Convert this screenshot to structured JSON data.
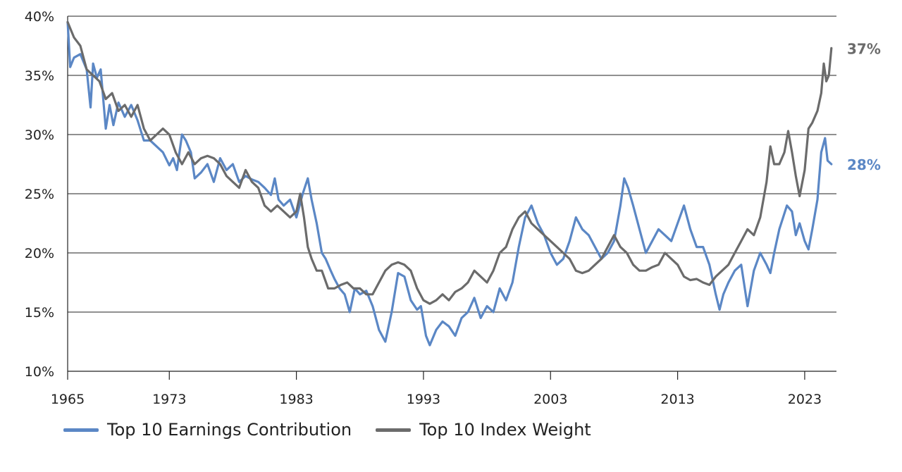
{
  "chart_data": {
    "type": "line",
    "title": "",
    "xlabel": "",
    "ylabel": "",
    "xlim": [
      1965,
      2025.5
    ],
    "ylim": [
      10,
      40
    ],
    "x_ticks": [
      1965,
      1973,
      1983,
      1993,
      2003,
      2013,
      2023
    ],
    "x_tick_labels": [
      "1965",
      "1973",
      "1983",
      "1993",
      "2003",
      "2013",
      "2023"
    ],
    "y_ticks": [
      10,
      15,
      20,
      25,
      30,
      35,
      40
    ],
    "y_tick_labels": [
      "10%",
      "15%",
      "20%",
      "25%",
      "30%",
      "35%",
      "40%"
    ],
    "grid": "horizontal",
    "legend_position": "bottom-left",
    "series": [
      {
        "name": "Top 10 Earnings Contribution",
        "color": "#5b87c5",
        "end_label": "28%",
        "points": [
          [
            1965.0,
            39.5
          ],
          [
            1965.2,
            35.7
          ],
          [
            1965.5,
            36.5
          ],
          [
            1966.0,
            36.8
          ],
          [
            1966.5,
            35.5
          ],
          [
            1966.8,
            32.3
          ],
          [
            1967.0,
            36.0
          ],
          [
            1967.3,
            34.8
          ],
          [
            1967.6,
            35.5
          ],
          [
            1968.0,
            30.5
          ],
          [
            1968.3,
            32.5
          ],
          [
            1968.6,
            30.8
          ],
          [
            1969.0,
            32.7
          ],
          [
            1969.5,
            31.5
          ],
          [
            1970.0,
            32.5
          ],
          [
            1970.5,
            31.2
          ],
          [
            1971.0,
            29.5
          ],
          [
            1971.5,
            29.5
          ],
          [
            1972.0,
            29.0
          ],
          [
            1972.5,
            28.5
          ],
          [
            1973.0,
            27.4
          ],
          [
            1973.3,
            28.0
          ],
          [
            1973.6,
            27.0
          ],
          [
            1974.0,
            30.0
          ],
          [
            1974.3,
            29.5
          ],
          [
            1974.7,
            28.5
          ],
          [
            1975.0,
            26.3
          ],
          [
            1975.5,
            26.8
          ],
          [
            1976.0,
            27.5
          ],
          [
            1976.5,
            26.0
          ],
          [
            1977.0,
            28.0
          ],
          [
            1977.5,
            27.0
          ],
          [
            1978.0,
            27.5
          ],
          [
            1978.5,
            26.0
          ],
          [
            1979.0,
            26.5
          ],
          [
            1979.5,
            26.2
          ],
          [
            1980.0,
            26.0
          ],
          [
            1980.5,
            25.5
          ],
          [
            1981.0,
            24.9
          ],
          [
            1981.3,
            26.3
          ],
          [
            1981.6,
            24.5
          ],
          [
            1982.0,
            24.0
          ],
          [
            1982.5,
            24.5
          ],
          [
            1983.0,
            23.0
          ],
          [
            1983.5,
            25.0
          ],
          [
            1983.9,
            26.3
          ],
          [
            1984.2,
            24.5
          ],
          [
            1984.6,
            22.5
          ],
          [
            1985.0,
            20.0
          ],
          [
            1985.3,
            19.5
          ],
          [
            1985.7,
            18.5
          ],
          [
            1986.0,
            17.8
          ],
          [
            1986.4,
            17.0
          ],
          [
            1986.8,
            16.5
          ],
          [
            1987.2,
            15.0
          ],
          [
            1987.6,
            17.0
          ],
          [
            1988.0,
            16.5
          ],
          [
            1988.5,
            16.8
          ],
          [
            1989.0,
            15.5
          ],
          [
            1989.5,
            13.5
          ],
          [
            1990.0,
            12.5
          ],
          [
            1990.5,
            15.0
          ],
          [
            1991.0,
            18.3
          ],
          [
            1991.5,
            18.0
          ],
          [
            1992.0,
            16.0
          ],
          [
            1992.5,
            15.2
          ],
          [
            1992.8,
            15.5
          ],
          [
            1993.2,
            13.0
          ],
          [
            1993.5,
            12.2
          ],
          [
            1994.0,
            13.5
          ],
          [
            1994.5,
            14.2
          ],
          [
            1995.0,
            13.8
          ],
          [
            1995.5,
            13.0
          ],
          [
            1996.0,
            14.5
          ],
          [
            1996.5,
            15.0
          ],
          [
            1997.0,
            16.2
          ],
          [
            1997.5,
            14.5
          ],
          [
            1998.0,
            15.5
          ],
          [
            1998.5,
            15.0
          ],
          [
            1999.0,
            17.0
          ],
          [
            1999.5,
            16.0
          ],
          [
            2000.0,
            17.5
          ],
          [
            2000.5,
            20.5
          ],
          [
            2001.0,
            23.0
          ],
          [
            2001.5,
            24.0
          ],
          [
            2002.0,
            22.5
          ],
          [
            2002.5,
            21.5
          ],
          [
            2003.0,
            20.0
          ],
          [
            2003.5,
            19.0
          ],
          [
            2004.0,
            19.5
          ],
          [
            2004.5,
            21.0
          ],
          [
            2005.0,
            23.0
          ],
          [
            2005.5,
            22.0
          ],
          [
            2006.0,
            21.5
          ],
          [
            2006.5,
            20.5
          ],
          [
            2007.0,
            19.5
          ],
          [
            2007.5,
            20.0
          ],
          [
            2008.0,
            21.0
          ],
          [
            2008.5,
            24.0
          ],
          [
            2008.8,
            26.3
          ],
          [
            2009.1,
            25.5
          ],
          [
            2009.5,
            24.0
          ],
          [
            2010.0,
            22.0
          ],
          [
            2010.5,
            20.0
          ],
          [
            2011.0,
            21.0
          ],
          [
            2011.5,
            22.0
          ],
          [
            2012.0,
            21.5
          ],
          [
            2012.5,
            21.0
          ],
          [
            2013.0,
            22.5
          ],
          [
            2013.5,
            24.0
          ],
          [
            2014.0,
            22.0
          ],
          [
            2014.5,
            20.5
          ],
          [
            2015.0,
            20.5
          ],
          [
            2015.5,
            19.0
          ],
          [
            2015.8,
            17.5
          ],
          [
            2016.0,
            16.5
          ],
          [
            2016.3,
            15.2
          ],
          [
            2016.6,
            16.5
          ],
          [
            2017.0,
            17.5
          ],
          [
            2017.5,
            18.5
          ],
          [
            2018.0,
            19.0
          ],
          [
            2018.5,
            15.5
          ],
          [
            2019.0,
            18.5
          ],
          [
            2019.5,
            20.0
          ],
          [
            2020.0,
            19.0
          ],
          [
            2020.3,
            18.3
          ],
          [
            2020.6,
            20.0
          ],
          [
            2021.0,
            22.0
          ],
          [
            2021.3,
            23.0
          ],
          [
            2021.6,
            24.0
          ],
          [
            2022.0,
            23.5
          ],
          [
            2022.3,
            21.5
          ],
          [
            2022.6,
            22.5
          ],
          [
            2023.0,
            21.0
          ],
          [
            2023.3,
            20.3
          ],
          [
            2023.6,
            22.0
          ],
          [
            2024.0,
            24.5
          ],
          [
            2024.3,
            28.5
          ],
          [
            2024.6,
            29.7
          ],
          [
            2024.8,
            27.8
          ],
          [
            2025.1,
            27.5
          ]
        ]
      },
      {
        "name": "Top 10 Index Weight",
        "color": "#6b6b6b",
        "end_label": "37%",
        "points": [
          [
            1965.0,
            39.5
          ],
          [
            1965.5,
            38.2
          ],
          [
            1966.0,
            37.5
          ],
          [
            1966.5,
            35.5
          ],
          [
            1967.0,
            35.0
          ],
          [
            1967.5,
            34.5
          ],
          [
            1968.0,
            33.0
          ],
          [
            1968.5,
            33.5
          ],
          [
            1969.0,
            32.0
          ],
          [
            1969.5,
            32.5
          ],
          [
            1970.0,
            31.5
          ],
          [
            1970.5,
            32.5
          ],
          [
            1971.0,
            30.5
          ],
          [
            1971.5,
            29.5
          ],
          [
            1972.0,
            30.0
          ],
          [
            1972.5,
            30.5
          ],
          [
            1973.0,
            30.0
          ],
          [
            1973.5,
            28.5
          ],
          [
            1974.0,
            27.5
          ],
          [
            1974.5,
            28.5
          ],
          [
            1975.0,
            27.5
          ],
          [
            1975.5,
            28.0
          ],
          [
            1976.0,
            28.2
          ],
          [
            1976.5,
            28.0
          ],
          [
            1977.0,
            27.5
          ],
          [
            1977.5,
            26.5
          ],
          [
            1978.0,
            26.0
          ],
          [
            1978.5,
            25.5
          ],
          [
            1979.0,
            27.0
          ],
          [
            1979.5,
            26.0
          ],
          [
            1980.0,
            25.5
          ],
          [
            1980.5,
            24.0
          ],
          [
            1981.0,
            23.5
          ],
          [
            1981.5,
            24.0
          ],
          [
            1982.0,
            23.5
          ],
          [
            1982.5,
            23.0
          ],
          [
            1983.0,
            23.5
          ],
          [
            1983.3,
            25.0
          ],
          [
            1983.6,
            23.0
          ],
          [
            1983.9,
            20.5
          ],
          [
            1984.2,
            19.5
          ],
          [
            1984.6,
            18.5
          ],
          [
            1985.0,
            18.5
          ],
          [
            1985.5,
            17.0
          ],
          [
            1986.0,
            17.0
          ],
          [
            1986.5,
            17.3
          ],
          [
            1987.0,
            17.5
          ],
          [
            1987.5,
            17.0
          ],
          [
            1988.0,
            17.0
          ],
          [
            1988.5,
            16.5
          ],
          [
            1989.0,
            16.5
          ],
          [
            1989.5,
            17.5
          ],
          [
            1990.0,
            18.5
          ],
          [
            1990.5,
            19.0
          ],
          [
            1991.0,
            19.2
          ],
          [
            1991.5,
            19.0
          ],
          [
            1992.0,
            18.5
          ],
          [
            1992.5,
            17.0
          ],
          [
            1993.0,
            16.0
          ],
          [
            1993.5,
            15.7
          ],
          [
            1994.0,
            16.0
          ],
          [
            1994.5,
            16.5
          ],
          [
            1995.0,
            16.0
          ],
          [
            1995.5,
            16.7
          ],
          [
            1996.0,
            17.0
          ],
          [
            1996.5,
            17.5
          ],
          [
            1997.0,
            18.5
          ],
          [
            1997.5,
            18.0
          ],
          [
            1998.0,
            17.5
          ],
          [
            1998.5,
            18.5
          ],
          [
            1999.0,
            20.0
          ],
          [
            1999.5,
            20.5
          ],
          [
            2000.0,
            22.0
          ],
          [
            2000.5,
            23.0
          ],
          [
            2001.0,
            23.5
          ],
          [
            2001.5,
            22.5
          ],
          [
            2002.0,
            22.0
          ],
          [
            2002.5,
            21.5
          ],
          [
            2003.0,
            21.0
          ],
          [
            2003.5,
            20.5
          ],
          [
            2004.0,
            20.0
          ],
          [
            2004.5,
            19.5
          ],
          [
            2005.0,
            18.5
          ],
          [
            2005.5,
            18.3
          ],
          [
            2006.0,
            18.5
          ],
          [
            2006.5,
            19.0
          ],
          [
            2007.0,
            19.5
          ],
          [
            2007.5,
            20.5
          ],
          [
            2008.0,
            21.5
          ],
          [
            2008.5,
            20.5
          ],
          [
            2009.0,
            20.0
          ],
          [
            2009.5,
            19.0
          ],
          [
            2010.0,
            18.5
          ],
          [
            2010.5,
            18.5
          ],
          [
            2011.0,
            18.8
          ],
          [
            2011.5,
            19.0
          ],
          [
            2012.0,
            20.0
          ],
          [
            2012.5,
            19.5
          ],
          [
            2013.0,
            19.0
          ],
          [
            2013.5,
            18.0
          ],
          [
            2014.0,
            17.7
          ],
          [
            2014.5,
            17.8
          ],
          [
            2015.0,
            17.5
          ],
          [
            2015.5,
            17.3
          ],
          [
            2016.0,
            18.0
          ],
          [
            2016.5,
            18.5
          ],
          [
            2017.0,
            19.0
          ],
          [
            2017.5,
            20.0
          ],
          [
            2018.0,
            21.0
          ],
          [
            2018.5,
            22.0
          ],
          [
            2019.0,
            21.5
          ],
          [
            2019.5,
            23.0
          ],
          [
            2020.0,
            26.0
          ],
          [
            2020.3,
            29.0
          ],
          [
            2020.6,
            27.5
          ],
          [
            2021.0,
            27.5
          ],
          [
            2021.4,
            28.5
          ],
          [
            2021.7,
            30.3
          ],
          [
            2022.0,
            28.5
          ],
          [
            2022.3,
            26.5
          ],
          [
            2022.6,
            24.8
          ],
          [
            2023.0,
            27.0
          ],
          [
            2023.3,
            30.5
          ],
          [
            2023.6,
            31.0
          ],
          [
            2024.0,
            32.0
          ],
          [
            2024.3,
            33.5
          ],
          [
            2024.5,
            36.0
          ],
          [
            2024.7,
            34.5
          ],
          [
            2024.9,
            35.0
          ],
          [
            2025.1,
            37.3
          ]
        ]
      }
    ]
  }
}
